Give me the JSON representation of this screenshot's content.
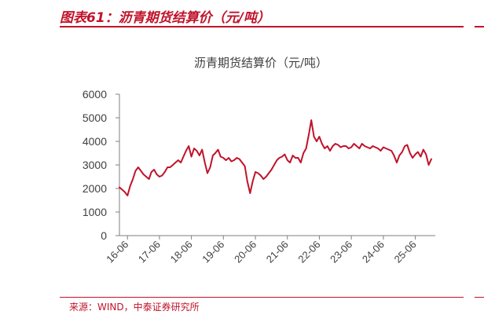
{
  "header": {
    "title": "图表61：沥青期货结算价（元/吨）"
  },
  "footer": {
    "source": "来源：WIND，中泰证券研究所"
  },
  "colors": {
    "accent": "#c0132a",
    "series": "#c0132a",
    "axis": "#7f7f7f",
    "text": "#404040"
  },
  "chart_data": {
    "type": "line",
    "title": "沥青期货结算价（元/吨）",
    "xlabel": "",
    "ylabel": "",
    "ylim": [
      0,
      6000
    ],
    "yticks": [
      0,
      1000,
      2000,
      3000,
      4000,
      5000,
      6000
    ],
    "xlim": [
      "2016-03-01",
      "2026-01-15"
    ],
    "xticks": [
      "2016-06",
      "2017-06",
      "2018-06",
      "2019-06",
      "2020-06",
      "2021-06",
      "2022-06",
      "2023-06",
      "2024-06",
      "2025-06"
    ],
    "xtick_labels": [
      "16-06",
      "17-06",
      "18-06",
      "19-06",
      "20-06",
      "21-06",
      "22-06",
      "23-06",
      "24-06",
      "25-06"
    ],
    "grid": false,
    "legend": "none",
    "series": [
      {
        "x": [
          "2016-03-01",
          "2016-04-01",
          "2016-05-01",
          "2016-06-01",
          "2016-07-01",
          "2016-08-01",
          "2016-09-01",
          "2016-10-01",
          "2016-11-01",
          "2016-12-01",
          "2017-01-01",
          "2017-02-01",
          "2017-03-01",
          "2017-04-01",
          "2017-05-01",
          "2017-06-01",
          "2017-07-01",
          "2017-08-01",
          "2017-09-01",
          "2017-10-01",
          "2017-11-01",
          "2017-12-01",
          "2018-01-01",
          "2018-02-01",
          "2018-03-01",
          "2018-04-01",
          "2018-05-01",
          "2018-06-01",
          "2018-07-01",
          "2018-08-01",
          "2018-09-01",
          "2018-10-01",
          "2018-11-01",
          "2018-12-01",
          "2019-01-01",
          "2019-02-01",
          "2019-03-01",
          "2019-04-01",
          "2019-05-01",
          "2019-06-01",
          "2019-07-01",
          "2019-08-01",
          "2019-09-01",
          "2019-10-01",
          "2019-11-01",
          "2019-12-01",
          "2020-01-01",
          "2020-02-01",
          "2020-03-01",
          "2020-04-01",
          "2020-05-01",
          "2020-06-01",
          "2020-07-01",
          "2020-08-01",
          "2020-09-01",
          "2020-10-01",
          "2020-11-01",
          "2020-12-01",
          "2021-01-01",
          "2021-02-01",
          "2021-03-01",
          "2021-04-01",
          "2021-05-01",
          "2021-06-01",
          "2021-07-01",
          "2021-08-01",
          "2021-09-01",
          "2021-10-01",
          "2021-11-01",
          "2021-12-01",
          "2022-01-01",
          "2022-02-01",
          "2022-03-01",
          "2022-04-01",
          "2022-05-01",
          "2022-06-01",
          "2022-07-01",
          "2022-08-01",
          "2022-09-01",
          "2022-10-01",
          "2022-11-01",
          "2022-12-01",
          "2023-01-01",
          "2023-02-01",
          "2023-03-01",
          "2023-04-01",
          "2023-05-01",
          "2023-06-01",
          "2023-07-01",
          "2023-08-01",
          "2023-09-01",
          "2023-10-01",
          "2023-11-01",
          "2023-12-01",
          "2024-01-01",
          "2024-02-01",
          "2024-03-01",
          "2024-04-01",
          "2024-05-01",
          "2024-06-01",
          "2024-07-01",
          "2024-08-01",
          "2024-09-01",
          "2024-10-01",
          "2024-11-01",
          "2024-12-01",
          "2025-01-01",
          "2025-02-01",
          "2025-03-01",
          "2025-04-01",
          "2025-05-01",
          "2025-06-01",
          "2025-07-01",
          "2025-08-01",
          "2025-09-01",
          "2025-10-01",
          "2025-11-01",
          "2025-12-01"
        ],
        "y": [
          2050,
          1950,
          1850,
          1700,
          2100,
          2400,
          2750,
          2900,
          2750,
          2600,
          2500,
          2400,
          2700,
          2800,
          2600,
          2500,
          2550,
          2700,
          2900,
          2900,
          3000,
          3100,
          3200,
          3100,
          3350,
          3600,
          3800,
          3350,
          3700,
          3600,
          3400,
          3650,
          3100,
          2650,
          2900,
          3400,
          3500,
          3650,
          3350,
          3300,
          3200,
          3300,
          3150,
          3200,
          3300,
          3250,
          3100,
          2950,
          2300,
          1800,
          2300,
          2700,
          2650,
          2550,
          2400,
          2500,
          2650,
          2800,
          3000,
          3200,
          3300,
          3350,
          3450,
          3200,
          3100,
          3400,
          3300,
          3300,
          3100,
          3500,
          3700,
          4300,
          4900,
          4200,
          4000,
          4200,
          3900,
          3700,
          3800,
          3600,
          3800,
          3900,
          3850,
          3750,
          3800,
          3800,
          3700,
          3750,
          3900,
          3800,
          3700,
          3900,
          3800,
          3750,
          3700,
          3800,
          3750,
          3700,
          3600,
          3750,
          3700,
          3650,
          3600,
          3400,
          3100,
          3400,
          3550,
          3800,
          3850,
          3500,
          3300,
          3450,
          3550,
          3350,
          3650,
          3450,
          3000,
          3250
        ]
      }
    ]
  }
}
